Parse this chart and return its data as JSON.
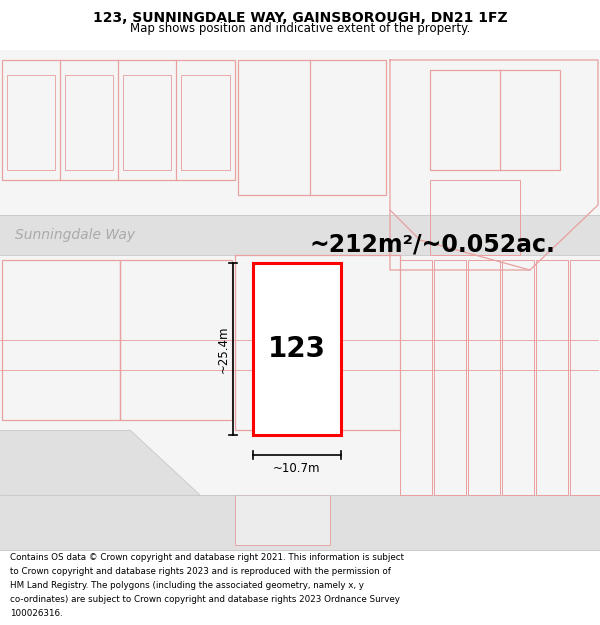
{
  "title_line1": "123, SUNNINGDALE WAY, GAINSBOROUGH, DN21 1FZ",
  "title_line2": "Map shows position and indicative extent of the property.",
  "area_label": "~212m²/~0.052ac.",
  "street_label": "Sunningdale Way",
  "number_label": "123",
  "width_label": "~10.7m",
  "height_label": "~25.4m",
  "footer_lines": [
    "Contains OS data © Crown copyright and database right 2021. This information is subject",
    "to Crown copyright and database rights 2023 and is reproduced with the permission of",
    "HM Land Registry. The polygons (including the associated geometry, namely x, y",
    "co-ordinates) are subject to Crown copyright and database rights 2023 Ordnance Survey",
    "100026316."
  ],
  "map_bg": "#f5f5f5",
  "road_color": "#e0e0e0",
  "building_outline_color": "#e8a0a0",
  "highlight_color": "#ff0000",
  "white": "#ffffff",
  "light_gray": "#d8d8d8",
  "mid_gray": "#c8c8c8"
}
